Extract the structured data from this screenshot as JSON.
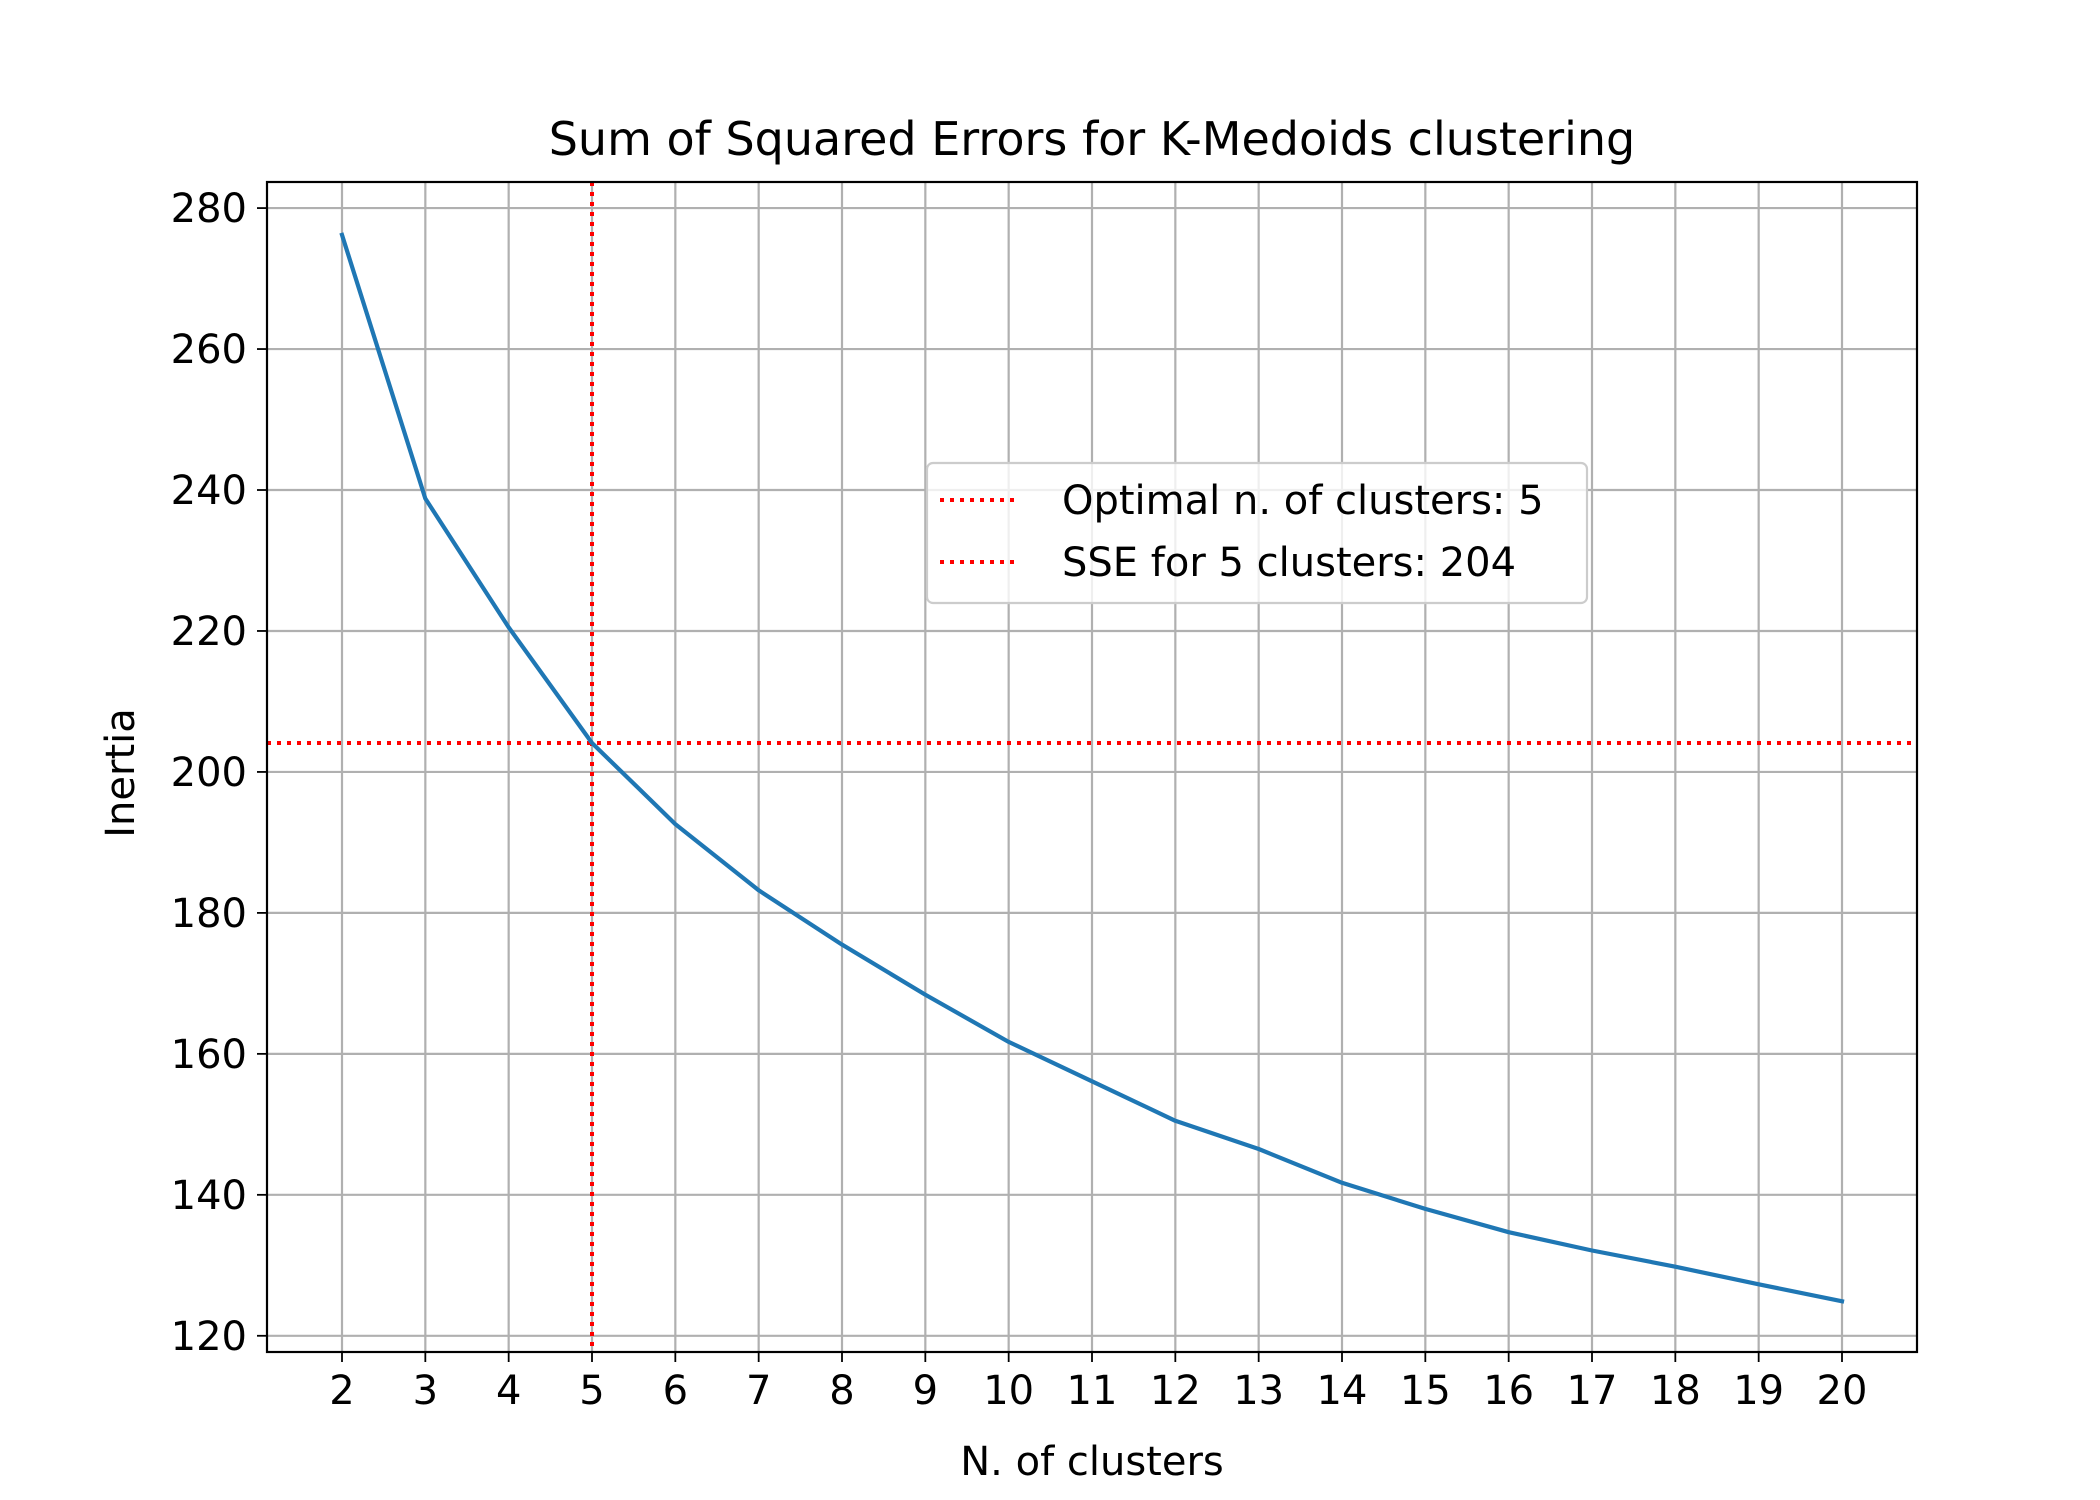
{
  "chart_data": {
    "type": "line",
    "title": "Sum of Squared Errors for K-Medoids clustering",
    "xlabel": "N. of clusters",
    "ylabel": "Inertia",
    "x": [
      2,
      3,
      4,
      5,
      6,
      7,
      8,
      9,
      10,
      11,
      12,
      13,
      14,
      15,
      16,
      17,
      18,
      19,
      20
    ],
    "xticks": [
      2,
      3,
      4,
      5,
      6,
      7,
      8,
      9,
      10,
      11,
      12,
      13,
      14,
      15,
      16,
      17,
      18,
      19,
      20
    ],
    "yticks": [
      120,
      140,
      160,
      180,
      200,
      220,
      240,
      260,
      280
    ],
    "xlim": [
      1.1,
      20.9
    ],
    "ylim": [
      117.7,
      283.7
    ],
    "grid": true,
    "series": [
      {
        "color": "#1f77b4",
        "values": [
          276.2,
          238.8,
          220.5,
          204.1,
          192.6,
          183.2,
          175.5,
          168.4,
          161.7,
          156.1,
          150.5,
          146.5,
          141.7,
          138.0,
          134.7,
          132.1,
          129.8,
          127.3,
          124.9
        ]
      }
    ],
    "reference_lines": [
      {
        "orientation": "vertical",
        "x": 5,
        "color": "#ff0000",
        "style": "dotted",
        "label": "Optimal n. of clusters: 5"
      },
      {
        "orientation": "horizontal",
        "y": 204.1,
        "color": "#ff0000",
        "style": "dotted",
        "label": "SSE for 5 clusters: 204"
      }
    ],
    "legend_placement": "center-right"
  }
}
